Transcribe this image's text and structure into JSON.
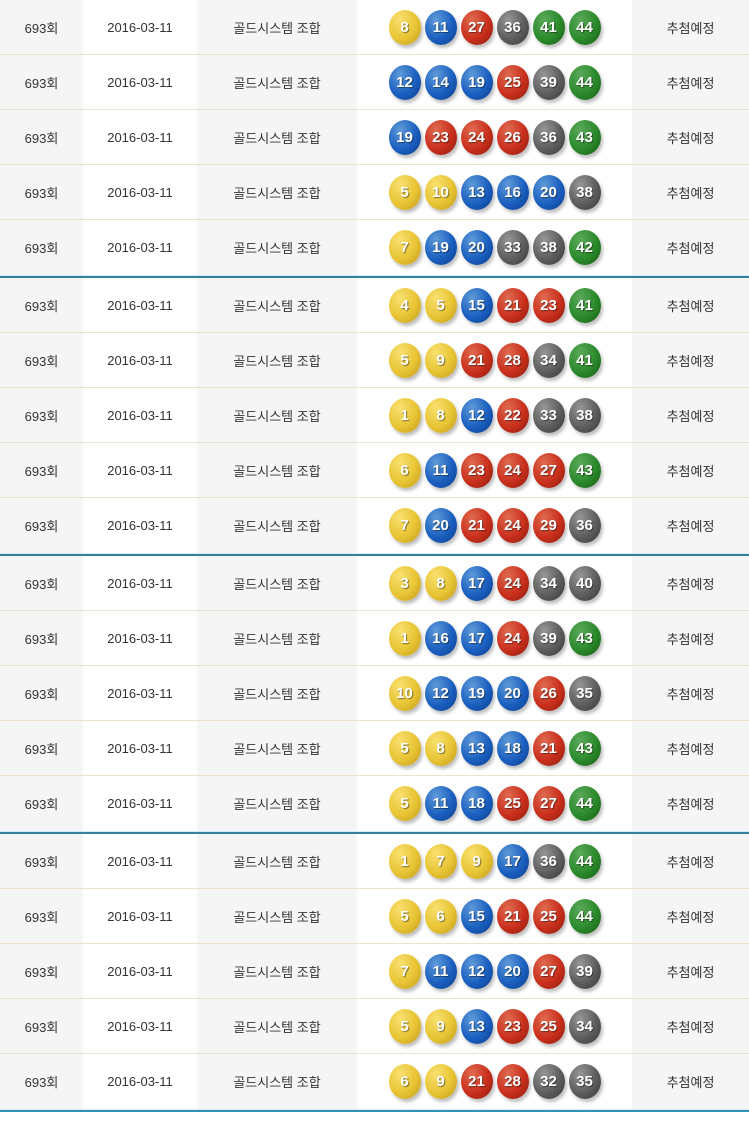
{
  "table": {
    "group_size": 5,
    "row_template": {
      "round_label": "693회",
      "date_label": "2016-03-11",
      "combo_label": "골드시스템 조합",
      "status_label": "추첨예정"
    },
    "rows": [
      {
        "round": "693회",
        "date": "2016-03-11",
        "combo": "골드시스템 조합",
        "numbers": [
          8,
          11,
          27,
          36,
          41,
          44
        ],
        "status": "추첨예정"
      },
      {
        "round": "693회",
        "date": "2016-03-11",
        "combo": "골드시스템 조합",
        "numbers": [
          12,
          14,
          19,
          25,
          39,
          44
        ],
        "status": "추첨예정"
      },
      {
        "round": "693회",
        "date": "2016-03-11",
        "combo": "골드시스템 조합",
        "numbers": [
          19,
          23,
          24,
          26,
          36,
          43
        ],
        "status": "추첨예정"
      },
      {
        "round": "693회",
        "date": "2016-03-11",
        "combo": "골드시스템 조합",
        "numbers": [
          5,
          10,
          13,
          16,
          20,
          38
        ],
        "status": "추첨예정"
      },
      {
        "round": "693회",
        "date": "2016-03-11",
        "combo": "골드시스템 조합",
        "numbers": [
          7,
          19,
          20,
          33,
          38,
          42
        ],
        "status": "추첨예정"
      },
      {
        "round": "693회",
        "date": "2016-03-11",
        "combo": "골드시스템 조합",
        "numbers": [
          4,
          5,
          15,
          21,
          23,
          41
        ],
        "status": "추첨예정"
      },
      {
        "round": "693회",
        "date": "2016-03-11",
        "combo": "골드시스템 조합",
        "numbers": [
          5,
          9,
          21,
          28,
          34,
          41
        ],
        "status": "추첨예정"
      },
      {
        "round": "693회",
        "date": "2016-03-11",
        "combo": "골드시스템 조합",
        "numbers": [
          1,
          8,
          12,
          22,
          33,
          38
        ],
        "status": "추첨예정"
      },
      {
        "round": "693회",
        "date": "2016-03-11",
        "combo": "골드시스템 조합",
        "numbers": [
          6,
          11,
          23,
          24,
          27,
          43
        ],
        "status": "추첨예정"
      },
      {
        "round": "693회",
        "date": "2016-03-11",
        "combo": "골드시스템 조합",
        "numbers": [
          7,
          20,
          21,
          24,
          29,
          36
        ],
        "status": "추첨예정"
      },
      {
        "round": "693회",
        "date": "2016-03-11",
        "combo": "골드시스템 조합",
        "numbers": [
          3,
          8,
          17,
          24,
          34,
          40
        ],
        "status": "추첨예정"
      },
      {
        "round": "693회",
        "date": "2016-03-11",
        "combo": "골드시스템 조합",
        "numbers": [
          1,
          16,
          17,
          24,
          39,
          43
        ],
        "status": "추첨예정"
      },
      {
        "round": "693회",
        "date": "2016-03-11",
        "combo": "골드시스템 조합",
        "numbers": [
          10,
          12,
          19,
          20,
          26,
          35
        ],
        "status": "추첨예정"
      },
      {
        "round": "693회",
        "date": "2016-03-11",
        "combo": "골드시스템 조합",
        "numbers": [
          5,
          8,
          13,
          18,
          21,
          43
        ],
        "status": "추첨예정"
      },
      {
        "round": "693회",
        "date": "2016-03-11",
        "combo": "골드시스템 조합",
        "numbers": [
          5,
          11,
          18,
          25,
          27,
          44
        ],
        "status": "추첨예정"
      },
      {
        "round": "693회",
        "date": "2016-03-11",
        "combo": "골드시스템 조합",
        "numbers": [
          1,
          7,
          9,
          17,
          36,
          44
        ],
        "status": "추첨예정"
      },
      {
        "round": "693회",
        "date": "2016-03-11",
        "combo": "골드시스템 조합",
        "numbers": [
          5,
          6,
          15,
          21,
          25,
          44
        ],
        "status": "추첨예정"
      },
      {
        "round": "693회",
        "date": "2016-03-11",
        "combo": "골드시스템 조합",
        "numbers": [
          7,
          11,
          12,
          20,
          27,
          39
        ],
        "status": "추첨예정"
      },
      {
        "round": "693회",
        "date": "2016-03-11",
        "combo": "골드시스템 조합",
        "numbers": [
          5,
          9,
          13,
          23,
          25,
          34
        ],
        "status": "추첨예정"
      },
      {
        "round": "693회",
        "date": "2016-03-11",
        "combo": "골드시스템 조합",
        "numbers": [
          6,
          9,
          21,
          28,
          32,
          35
        ],
        "status": "추첨예정"
      }
    ]
  },
  "ball_ranges": [
    {
      "max": 10,
      "key": "yellow"
    },
    {
      "max": 20,
      "key": "blue"
    },
    {
      "max": 30,
      "key": "red"
    },
    {
      "max": 40,
      "key": "gray"
    },
    {
      "max": 45,
      "key": "green"
    }
  ],
  "ball_colors": {
    "yellow": {
      "highlight": "#f9e070",
      "base": "#e7c433",
      "dark": "#c39b1f"
    },
    "blue": {
      "highlight": "#5f9ad8",
      "base": "#1a5fc0",
      "dark": "#0d3f8e"
    },
    "red": {
      "highlight": "#e06a50",
      "base": "#c92f1c",
      "dark": "#8e1d0e"
    },
    "gray": {
      "highlight": "#969696",
      "base": "#5d5d5d",
      "dark": "#3a3a3a"
    },
    "green": {
      "highlight": "#5aa95a",
      "base": "#2b8a2b",
      "dark": "#165e16"
    }
  },
  "colors": {
    "group_separator_teal": "#35809a",
    "group_separator_light": "#d5ecf4",
    "bottom_bar_teal": "#3193b5",
    "row_border_tan": "#ece0d0",
    "cell_gray_bg": "#f5f5f6",
    "text": "#333333"
  }
}
